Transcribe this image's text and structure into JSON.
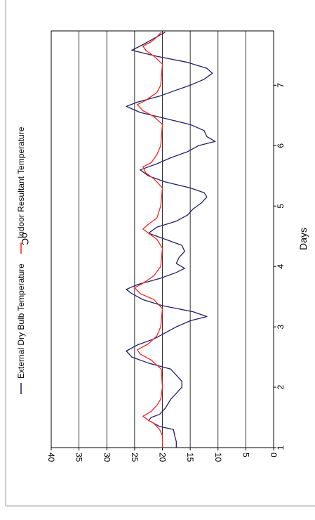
{
  "chart_data": {
    "type": "line",
    "orientation": "rotated-90-ccw",
    "xlabel": "Days",
    "ylabel": "oC",
    "xlim": [
      1,
      7.9
    ],
    "ylim": [
      0,
      40
    ],
    "x_ticks": [
      "1",
      "2",
      "3",
      "4",
      "5",
      "6",
      "7"
    ],
    "y_ticks": [
      "0",
      "5",
      "10",
      "15",
      "20",
      "25",
      "30",
      "35",
      "40"
    ],
    "grid": "major-y",
    "legend_position": "top",
    "series": [
      {
        "name": "External Dry Bulb Temperature",
        "color": "#1f1f6b",
        "points": [
          [
            1.0,
            17.5
          ],
          [
            1.1,
            17.5
          ],
          [
            1.2,
            17.8
          ],
          [
            1.3,
            18.0
          ],
          [
            1.35,
            20.5
          ],
          [
            1.4,
            21.5
          ],
          [
            1.45,
            22.5
          ],
          [
            1.5,
            22.0
          ],
          [
            1.55,
            20.5
          ],
          [
            1.65,
            19.5
          ],
          [
            1.8,
            18.5
          ],
          [
            1.9,
            17.5
          ],
          [
            2.0,
            16.5
          ],
          [
            2.1,
            16.5
          ],
          [
            2.2,
            17.5
          ],
          [
            2.3,
            18.5
          ],
          [
            2.4,
            22.5
          ],
          [
            2.5,
            25.5
          ],
          [
            2.6,
            26.5
          ],
          [
            2.7,
            24.5
          ],
          [
            2.8,
            21.5
          ],
          [
            2.9,
            19.5
          ],
          [
            3.0,
            17.5
          ],
          [
            3.1,
            15.0
          ],
          [
            3.17,
            12.0
          ],
          [
            3.25,
            14.5
          ],
          [
            3.35,
            20.0
          ],
          [
            3.45,
            23.5
          ],
          [
            3.55,
            25.5
          ],
          [
            3.62,
            26.5
          ],
          [
            3.7,
            24.5
          ],
          [
            3.8,
            20.5
          ],
          [
            3.9,
            17.5
          ],
          [
            3.97,
            16.0
          ],
          [
            4.05,
            17.5
          ],
          [
            4.15,
            17.0
          ],
          [
            4.25,
            16.0
          ],
          [
            4.35,
            16.5
          ],
          [
            4.45,
            19.5
          ],
          [
            4.55,
            22.5
          ],
          [
            4.65,
            21.0
          ],
          [
            4.75,
            17.5
          ],
          [
            4.85,
            15.5
          ],
          [
            4.95,
            14.5
          ],
          [
            5.05,
            13.0
          ],
          [
            5.15,
            12.0
          ],
          [
            5.22,
            12.5
          ],
          [
            5.3,
            15.0
          ],
          [
            5.4,
            19.5
          ],
          [
            5.5,
            22.5
          ],
          [
            5.6,
            24.0
          ],
          [
            5.7,
            21.0
          ],
          [
            5.8,
            18.5
          ],
          [
            5.9,
            15.5
          ],
          [
            6.0,
            13.5
          ],
          [
            6.07,
            10.5
          ],
          [
            6.15,
            12.0
          ],
          [
            6.25,
            12.5
          ],
          [
            6.35,
            15.0
          ],
          [
            6.45,
            19.5
          ],
          [
            6.55,
            24.0
          ],
          [
            6.65,
            26.5
          ],
          [
            6.72,
            24.5
          ],
          [
            6.82,
            20.5
          ],
          [
            6.92,
            17.5
          ],
          [
            7.0,
            15.0
          ],
          [
            7.1,
            12.5
          ],
          [
            7.2,
            11.0
          ],
          [
            7.28,
            12.0
          ],
          [
            7.38,
            15.5
          ],
          [
            7.48,
            21.0
          ],
          [
            7.58,
            25.5
          ],
          [
            7.65,
            24.0
          ],
          [
            7.75,
            22.0
          ],
          [
            7.88,
            19.5
          ]
        ]
      },
      {
        "name": "Indoor Resultant Temperature",
        "color": "#ff2020",
        "points": [
          [
            1.0,
            20.0
          ],
          [
            1.2,
            20.0
          ],
          [
            1.3,
            20.5
          ],
          [
            1.4,
            21.5
          ],
          [
            1.45,
            22.5
          ],
          [
            1.52,
            23.5
          ],
          [
            1.6,
            22.0
          ],
          [
            1.7,
            21.0
          ],
          [
            1.8,
            20.3
          ],
          [
            2.0,
            20.0
          ],
          [
            2.3,
            20.2
          ],
          [
            2.45,
            22.0
          ],
          [
            2.55,
            24.0
          ],
          [
            2.62,
            24.5
          ],
          [
            2.72,
            22.5
          ],
          [
            2.85,
            21.0
          ],
          [
            3.0,
            20.3
          ],
          [
            3.3,
            20.0
          ],
          [
            3.45,
            21.5
          ],
          [
            3.55,
            24.0
          ],
          [
            3.65,
            25.0
          ],
          [
            3.72,
            23.5
          ],
          [
            3.85,
            21.5
          ],
          [
            4.0,
            20.3
          ],
          [
            4.3,
            20.0
          ],
          [
            4.45,
            21.0
          ],
          [
            4.55,
            22.5
          ],
          [
            4.62,
            23.5
          ],
          [
            4.7,
            22.5
          ],
          [
            4.8,
            21.0
          ],
          [
            5.0,
            20.3
          ],
          [
            5.3,
            20.0
          ],
          [
            5.45,
            21.5
          ],
          [
            5.55,
            23.0
          ],
          [
            5.65,
            23.5
          ],
          [
            5.72,
            22.0
          ],
          [
            5.85,
            21.0
          ],
          [
            6.0,
            20.3
          ],
          [
            6.35,
            20.0
          ],
          [
            6.48,
            21.5
          ],
          [
            6.58,
            23.5
          ],
          [
            6.68,
            24.5
          ],
          [
            6.75,
            23.0
          ],
          [
            6.88,
            21.0
          ],
          [
            7.0,
            20.3
          ],
          [
            7.35,
            20.0
          ],
          [
            7.48,
            21.5
          ],
          [
            7.58,
            23.0
          ],
          [
            7.65,
            23.5
          ],
          [
            7.72,
            22.0
          ],
          [
            7.8,
            21.0
          ],
          [
            7.88,
            20.2
          ]
        ]
      }
    ]
  }
}
